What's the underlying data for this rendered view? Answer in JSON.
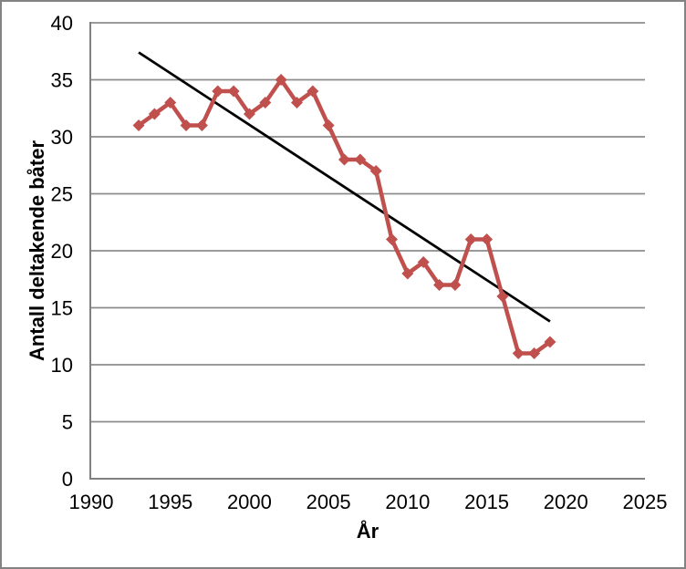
{
  "chart_data": {
    "type": "line",
    "title": "",
    "xlabel": "År",
    "ylabel": "Antall deltakende båter",
    "xlim": [
      1990,
      2025
    ],
    "ylim": [
      0,
      40
    ],
    "xticks": [
      1990,
      1995,
      2000,
      2005,
      2010,
      2015,
      2020,
      2025
    ],
    "yticks": [
      0,
      5,
      10,
      15,
      20,
      25,
      30,
      35,
      40
    ],
    "grid": "horizontal-major",
    "legend": "none",
    "x": [
      1993,
      1994,
      1995,
      1996,
      1997,
      1998,
      1999,
      2000,
      2001,
      2002,
      2003,
      2004,
      2005,
      2006,
      2007,
      2008,
      2009,
      2010,
      2011,
      2012,
      2013,
      2014,
      2015,
      2016,
      2017,
      2018,
      2019
    ],
    "series": [
      {
        "name": "Antall deltakende båter",
        "marker": "diamond",
        "color": "#C0504D",
        "values": [
          31,
          32,
          33,
          31,
          31,
          34,
          34,
          32,
          33,
          35,
          33,
          34,
          31,
          28,
          28,
          27,
          21,
          18,
          19,
          17,
          17,
          21,
          21,
          16,
          11,
          11,
          12
        ]
      }
    ],
    "trendline": {
      "type": "linear",
      "color": "#000000",
      "x_start": 1993,
      "value_start": 37.4,
      "x_end": 2019,
      "value_end": 13.8
    },
    "colors": {
      "series": "#C0504D",
      "trendline": "#000000",
      "gridline": "#8C8C8C",
      "axis": "#808080",
      "text": "#000000",
      "background": "#FFFFFF",
      "frame_border": "#838383"
    }
  }
}
